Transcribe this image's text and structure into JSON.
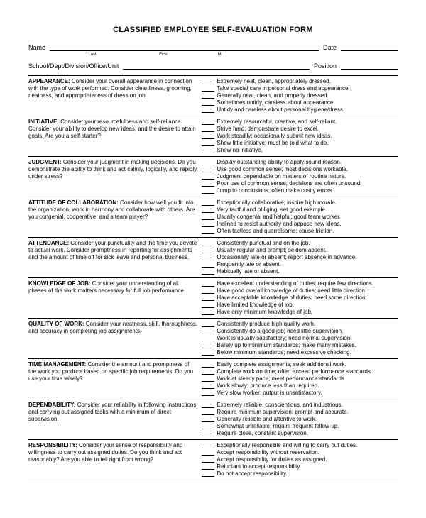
{
  "title": "CLASSIFIED EMPLOYEE SELF-EVALUATION FORM",
  "header": {
    "name_label": "Name",
    "date_label": "Date",
    "school_label": "School/Dept/Division/Office/Unit",
    "position_label": "Position",
    "sub_last": "Last",
    "sub_first": "First",
    "sub_mi": "MI"
  },
  "sections": [
    {
      "category": "APPEARANCE:",
      "prompt": " Consider your overall appearance in connection with the type of work performed. Consider cleanliness, grooming, neatness, and appropriateness of dress on job.",
      "options": [
        "Extremely neat, clean, appropriately dressed.",
        "Take special care in personal dress and appearance.",
        "Generally neat, clean, and properly dressed.",
        "Sometimes untidy, careless about appearance.",
        "Untidy and careless about personal hygiene/dress."
      ]
    },
    {
      "category": "INITIATIVE:",
      "prompt": " Consider your resourcefulness and self-reliance. Consider your ability to develop new ideas, and the desire to attain goals. Are you a self-starter?",
      "options": [
        "Extremely resourceful, creative, and self-reliant.",
        "Strive hard; demonstrate desire to excel.",
        "Work steadily; occasionally submit new ideas.",
        "Show little initiative; must be told what to do.",
        "Show no initiative."
      ]
    },
    {
      "category": "JUDGMENT:",
      "prompt": " Consider your judgment in making decisions. Do you demonstrate the ability to think and act calmly, logically, and rapidly under stress?",
      "options": [
        "Display outstanding ability to apply sound reason.",
        "Use good common sense; most decisions workable.",
        "Judgment dependable on matters of routine nature.",
        "Poor use of common sense; decisions are often unsound.",
        "Jump to conclusions; often make costly errors."
      ]
    },
    {
      "category": "ATTITUDE OF COLLABORATION:",
      "prompt": " Consider how well you fit into the organization, work in harmony and collaborate with others. Are you congenial, cooperative, and a team player?",
      "options": [
        "Exceptionally collaborative; inspire high morale.",
        "Very tactful and obliging; set good example.",
        "Usually congenial and helpful; good team worker.",
        "Inclined to resist authority and oppose new ideas.",
        "Often tactless and quarrelsome; cause friction."
      ]
    },
    {
      "category": "ATTENDANCE:",
      "prompt": " Consider your punctuality and the time you devote to actual work. Consider promptness in reporting for assignments and the amount of time off for sick leave and personal business.",
      "options": [
        "Consistently punctual and on the job.",
        "Usually regular and prompt; seldom absent.",
        "Occasionally late or absent; report absence in advance.",
        "Frequently late or absent.",
        "Habitually late or absent."
      ]
    },
    {
      "category": "KNOWLEDGE OF JOB:",
      "prompt": " Consider your understanding of all phases of the work matters necessary for full job performance.",
      "options": [
        "Have excellent understanding of duties; require few directions.",
        "Have good overall knowledge of duties; need little direction.",
        "Have acceptable knowledge of duties; need some direction.",
        "Have limited knowledge of job.",
        "Have only minimum knowledge of job."
      ]
    },
    {
      "category": "QUALITY OF WORK:",
      "prompt": " Consider your neatness, skill, thoroughness, and accuracy in completing job assignments.",
      "options": [
        "Consistently produce high quality work.",
        "Consistently do a good job; need little supervision.",
        "Work is usually satisfactory; need normal supervision.",
        "Barely up to minimum standards; make many mistakes.",
        "Below minimum standards; need excessive checking."
      ]
    },
    {
      "category": "TIME MANAGEMENT:",
      "prompt": " Consider the amount and promptness of the work you produce based on specific job requirements. Do you use your time wisely?",
      "options": [
        "Easily complete assignments; seek additional work.",
        "Complete work on time; often exceed performance standards.",
        "Work at steady pace; meet performance standards.",
        "Work slowly; produce less than required.",
        "Very slow worker; output is unsatisfactory."
      ]
    },
    {
      "category": "DEPENDABILITY:",
      "prompt": " Consider your reliability in following instructions and carrying out assigned tasks with a minimum of direct supervision.",
      "options": [
        "Extremely reliable, conscientious, and industrious.",
        "Require minimum supervision; prompt and accurate.",
        "Generally reliable and attentive to work.",
        "Somewhat unreliable; require frequent follow-up.",
        "Require close, constant supervision."
      ]
    },
    {
      "category": "RESPONSIBILITY:",
      "prompt": " Consider your sense of responsibility and willingness to carry out assigned duties. Do you think and act reasonably? Are you able to tell right from wrong?",
      "options": [
        "Exceptionally responsible and willing to carry out duties.",
        "Accept responsibility without reservation.",
        "Accept responsibility for duties as assigned.",
        "Reluctant to accept responsibility.",
        "Do not accept responsibility."
      ]
    }
  ]
}
